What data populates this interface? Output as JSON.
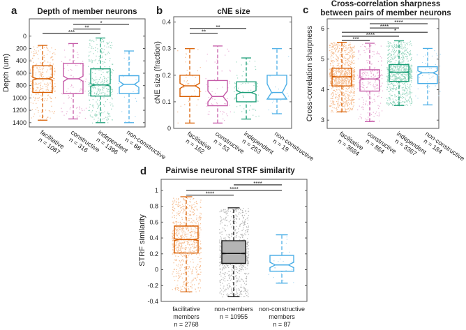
{
  "chart_data": [
    {
      "panel": "a",
      "type": "box",
      "title": [
        "Depth of member neurons"
      ],
      "ylabel": "Depth (um)",
      "ylim": [
        -280,
        1470
      ],
      "y_reversed": true,
      "yticks": [
        0,
        200,
        400,
        600,
        800,
        1000,
        1200,
        1400
      ],
      "yticklabels": [
        "0",
        "200",
        "400",
        "600",
        "800",
        "1000",
        "1200",
        "1400"
      ],
      "groups": [
        {
          "label": [
            "facilitative",
            "n = 1087"
          ],
          "n": 1087,
          "color": "#d95f02",
          "point_color": "#f5b98a",
          "whisker_low": 150,
          "q1": 480,
          "median": 690,
          "q3": 910,
          "whisker_high": 1360
        },
        {
          "label": [
            "constructive",
            "n = 316"
          ],
          "n": 316,
          "color": "#c55aa8",
          "point_color": "#e9a9d3",
          "whisker_low": 120,
          "q1": 440,
          "median": 690,
          "q3": 930,
          "whisker_high": 1340
        },
        {
          "label": [
            "independent",
            "n = 1396"
          ],
          "n": 1396,
          "color": "#1b9e77",
          "point_color": "#95d6bf",
          "whisker_low": 30,
          "q1": 530,
          "median": 790,
          "q3": 970,
          "whisker_high": 1400
        },
        {
          "label": [
            "non-constructive",
            "n = 88"
          ],
          "n": 88,
          "color": "#4aaee6",
          "point_color": "#a7d7f2",
          "whisker_low": 240,
          "q1": 640,
          "median": 780,
          "q3": 930,
          "whisker_high": 1400
        }
      ],
      "significance": [
        {
          "from": 1,
          "to": 3,
          "label": "*",
          "y": -190
        },
        {
          "from": 1,
          "to": 2,
          "label": "**",
          "y": -115
        },
        {
          "from": 0,
          "to": 2,
          "label": "***",
          "y": -45
        }
      ]
    },
    {
      "panel": "b",
      "type": "box",
      "title": [
        "cNE size"
      ],
      "ylabel": "cNE size (fraction)",
      "ylim": [
        0,
        0.42
      ],
      "y_reversed": false,
      "yticks": [
        0,
        0.1,
        0.2,
        0.3,
        0.4
      ],
      "yticklabels": [
        "0",
        "0.1",
        "0.2",
        "0.3",
        "0.4"
      ],
      "groups": [
        {
          "label": [
            "facilitative",
            "n = 162"
          ],
          "n": 162,
          "color": "#d95f02",
          "point_color": "#f5b98a",
          "whisker_low": 0.02,
          "q1": 0.12,
          "median": 0.16,
          "q3": 0.2,
          "whisker_high": 0.3
        },
        {
          "label": [
            "constructive",
            "n = 53"
          ],
          "n": 53,
          "color": "#c55aa8",
          "point_color": "#e9a9d3",
          "whisker_low": 0.02,
          "q1": 0.085,
          "median": 0.12,
          "q3": 0.18,
          "whisker_high": 0.31
        },
        {
          "label": [
            "independent",
            "n = 253"
          ],
          "n": 253,
          "color": "#1b9e77",
          "point_color": "#95d6bf",
          "whisker_low": 0.035,
          "q1": 0.1,
          "median": 0.135,
          "q3": 0.175,
          "whisker_high": 0.265
        },
        {
          "label": [
            "non-constructive",
            "n = 19"
          ],
          "n": 19,
          "color": "#4aaee6",
          "point_color": "#a7d7f2",
          "whisker_low": 0.055,
          "q1": 0.11,
          "median": 0.135,
          "q3": 0.2,
          "whisker_high": 0.3
        }
      ],
      "significance": [
        {
          "from": 0,
          "to": 2,
          "label": "**",
          "y": 0.376
        },
        {
          "from": 0,
          "to": 1,
          "label": "**",
          "y": 0.358
        }
      ]
    },
    {
      "panel": "c",
      "type": "box",
      "title": [
        "Cross-correlation sharpness",
        "between pairs of member neurons"
      ],
      "ylabel": "Cross-correlation sharpness",
      "ylim": [
        2.73,
        6.32
      ],
      "y_reversed": false,
      "yticks": [
        3,
        4,
        5,
        6
      ],
      "yticklabels": [
        "3",
        "4",
        "5",
        "6"
      ],
      "groups": [
        {
          "label": [
            "facilitative",
            "n = 3684"
          ],
          "n": 3684,
          "color": "#d95f02",
          "point_color": "#f5b98a",
          "whisker_low": 3.27,
          "q1": 4.12,
          "median": 4.42,
          "q3": 4.7,
          "whisker_high": 5.55
        },
        {
          "label": [
            "constructive",
            "n = 864"
          ],
          "n": 864,
          "color": "#c55aa8",
          "point_color": "#e9a9d3",
          "whisker_low": 2.95,
          "q1": 3.95,
          "median": 4.35,
          "q3": 4.65,
          "whisker_high": 5.52
        },
        {
          "label": [
            "independent",
            "n = 3367"
          ],
          "n": 3367,
          "color": "#1b9e77",
          "point_color": "#95d6bf",
          "whisker_low": 3.48,
          "q1": 4.27,
          "median": 4.57,
          "q3": 4.82,
          "whisker_high": 5.6
        },
        {
          "label": [
            "non-constructive",
            "n = 184"
          ],
          "n": 184,
          "color": "#4aaee6",
          "point_color": "#a7d7f2",
          "whisker_low": 3.5,
          "q1": 4.2,
          "median": 4.55,
          "q3": 4.75,
          "whisker_high": 5.35
        }
      ],
      "significance": [
        {
          "from": 1,
          "to": 3,
          "label": "****",
          "y": 6.16
        },
        {
          "from": 1,
          "to": 2,
          "label": "****",
          "y": 6.02
        },
        {
          "from": 0,
          "to": 3,
          "label": "*",
          "y": 5.88
        },
        {
          "from": 0,
          "to": 2,
          "label": "****",
          "y": 5.75
        },
        {
          "from": 0,
          "to": 1,
          "label": "***",
          "y": 5.61
        }
      ]
    },
    {
      "panel": "d",
      "type": "box",
      "title": [
        "Pairwise neuronal STRF similarity"
      ],
      "ylabel": "STRF similarity",
      "ylim": [
        -0.4,
        1.14
      ],
      "y_reversed": false,
      "yticks": [
        -0.4,
        -0.2,
        0,
        0.2,
        0.4,
        0.6,
        0.8,
        1
      ],
      "yticklabels": [
        "-0.4",
        "-0.2",
        "0",
        "0.2",
        "0.4",
        "0.6",
        "0.8",
        "1"
      ],
      "groups": [
        {
          "label": [
            "facilitative",
            "members",
            "n = 2768"
          ],
          "n": 2768,
          "color": "#d95f02",
          "point_color": "#f5b98a",
          "whisker_low": -0.28,
          "q1": 0.21,
          "median": 0.38,
          "q3": 0.55,
          "whisker_high": 0.92
        },
        {
          "label": [
            "non-members",
            "n = 10955"
          ],
          "n": 10955,
          "color": "#111111",
          "point_color": "#b4b4b4",
          "box_fill": "#b4b4b4",
          "whisker_low": -0.34,
          "q1": 0.08,
          "median": 0.205,
          "q3": 0.365,
          "whisker_high": 0.78
        },
        {
          "label": [
            "non-constructive",
            "members",
            "n = 87"
          ],
          "n": 87,
          "color": "#4aaee6",
          "point_color": "#a7d7f2",
          "whisker_low": -0.17,
          "q1": -0.02,
          "median": 0.06,
          "q3": 0.18,
          "whisker_high": 0.44
        }
      ],
      "significance": [
        {
          "from": 1,
          "to": 2,
          "label": "****",
          "y": 1.07
        },
        {
          "from": 0,
          "to": 2,
          "label": "****",
          "y": 1.0
        },
        {
          "from": 0,
          "to": 1,
          "label": "****",
          "y": 0.94
        }
      ]
    }
  ]
}
